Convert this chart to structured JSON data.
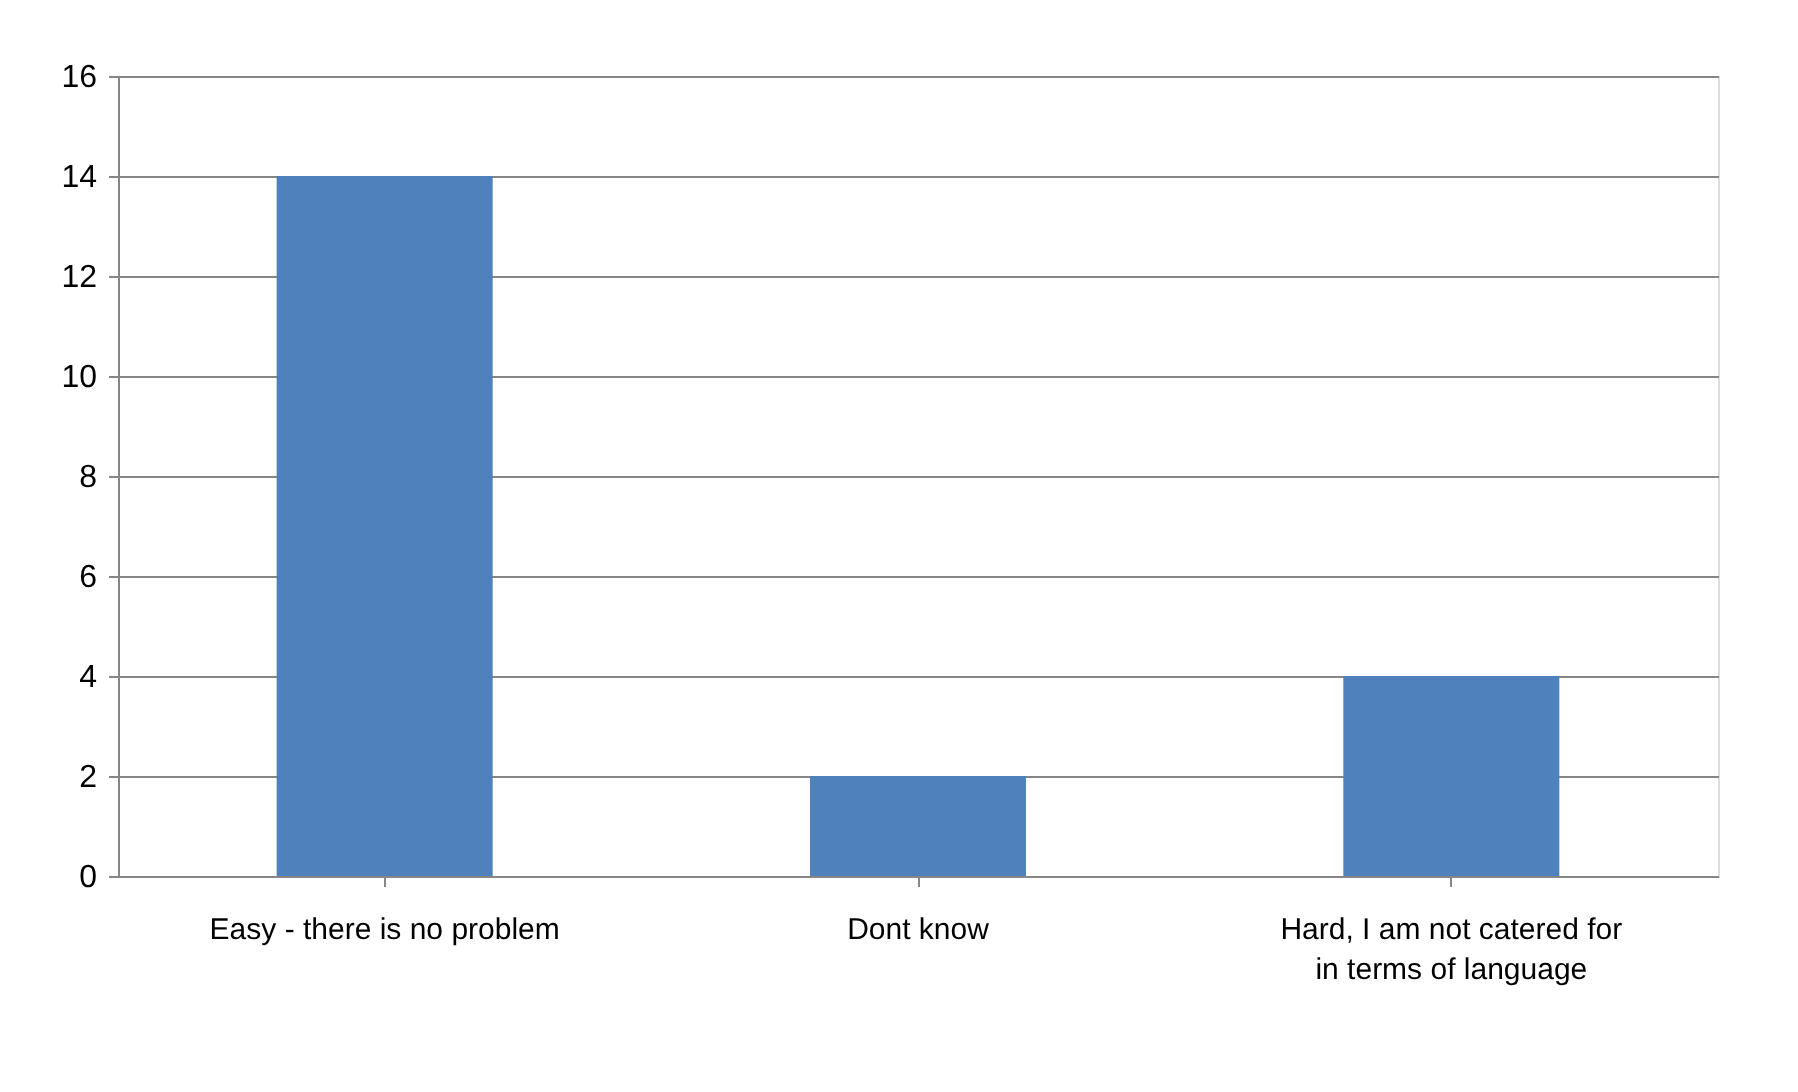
{
  "chart_data": {
    "type": "bar",
    "categories": [
      "Easy - there is no problem",
      "Dont know",
      "Hard, I am not catered for in terms of language"
    ],
    "values": [
      14,
      2,
      4
    ],
    "color": "#4f81bd",
    "ylim": [
      0,
      16
    ],
    "yticks": [
      0,
      2,
      4,
      6,
      8,
      10,
      12,
      14,
      16
    ],
    "grid": "y"
  }
}
